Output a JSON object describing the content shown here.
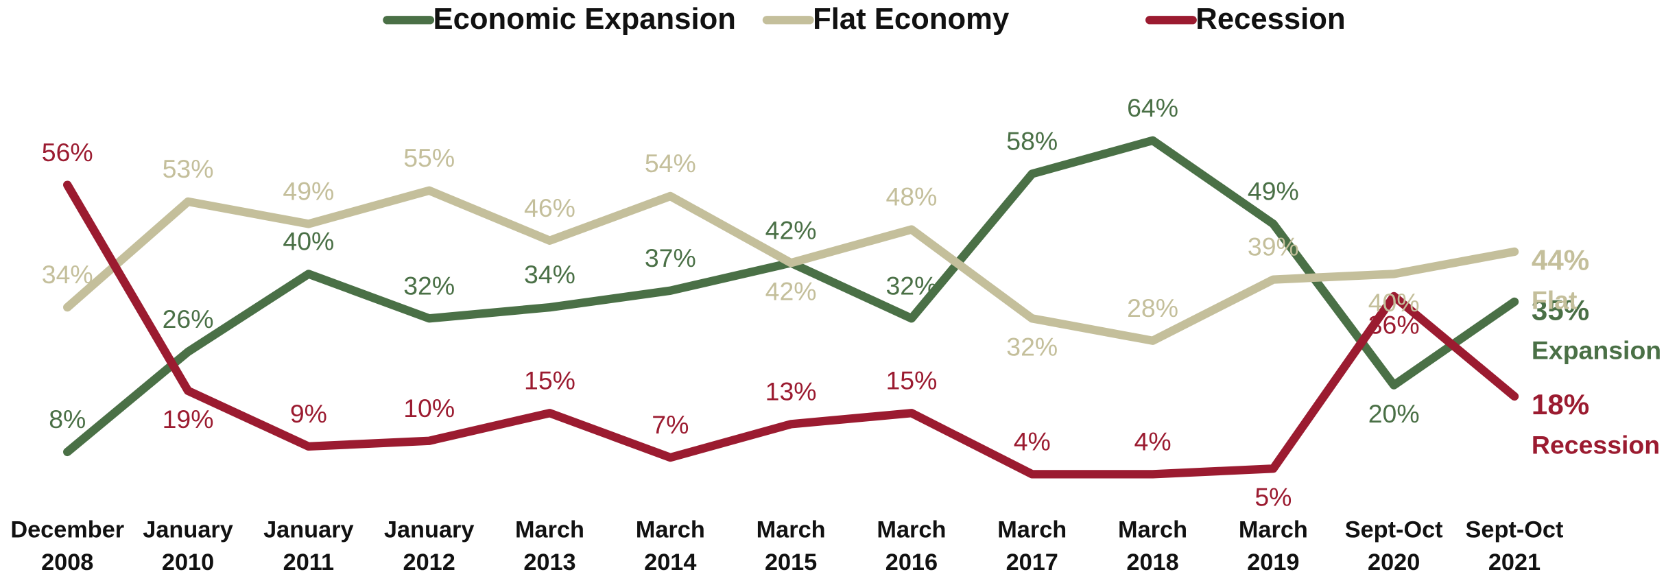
{
  "chart_data": {
    "type": "line",
    "categories": [
      "December 2008",
      "January 2010",
      "January 2011",
      "January 2012",
      "March 2013",
      "March 2014",
      "March 2015",
      "March 2016",
      "March 2017",
      "March 2018",
      "March 2019",
      "Sept-Oct 2020",
      "Sept-Oct 2021"
    ],
    "series": [
      {
        "name": "Economic Expansion",
        "label": "Expansion",
        "color": "#4a7046",
        "values": [
          8,
          26,
          40,
          32,
          34,
          37,
          42,
          32,
          58,
          64,
          49,
          20,
          35
        ],
        "value_labels": [
          "8%",
          "26%",
          "40%",
          "32%",
          "34%",
          "37%",
          "42%",
          "32%",
          "58%",
          "64%",
          "49%",
          "20%",
          "35%"
        ]
      },
      {
        "name": "Flat Economy",
        "label": "Flat",
        "color": "#c4bf9b",
        "values": [
          34,
          53,
          49,
          55,
          46,
          54,
          42,
          48,
          32,
          28,
          39,
          40,
          44
        ],
        "value_labels": [
          "34%",
          "53%",
          "49%",
          "55%",
          "46%",
          "54%",
          "42%",
          "48%",
          "32%",
          "28%",
          "39%",
          "40%",
          "44%"
        ]
      },
      {
        "name": "Recession",
        "label": "Recession",
        "color": "#9b1b30",
        "values": [
          56,
          19,
          9,
          10,
          15,
          7,
          13,
          15,
          4,
          4,
          5,
          36,
          18
        ],
        "value_labels": [
          "56%",
          "19%",
          "9%",
          "10%",
          "15%",
          "7%",
          "13%",
          "15%",
          "4%",
          "4%",
          "5%",
          "36%",
          "18%"
        ]
      }
    ],
    "legend": "top"
  }
}
